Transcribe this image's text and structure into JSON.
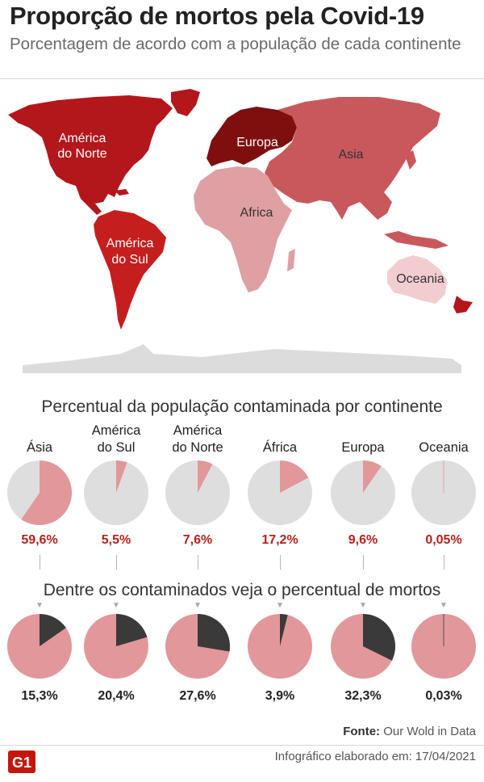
{
  "title": "Proporção de mortos pela Covid-19",
  "subtitle": "Porcentagem de acordo com a população de cada continente",
  "map": {
    "labels": {
      "north_america": [
        "América",
        "do Norte"
      ],
      "south_america": [
        "América",
        "do Sul"
      ],
      "europe": "Europa",
      "asia": "Asia",
      "africa": "Africa",
      "oceania": "Oceania"
    },
    "colors": {
      "north_america": "#b3171b",
      "south_america": "#c41e1e",
      "europe": "#7f0f0f",
      "asia": "#c9585d",
      "africa": "#dfa0a3",
      "oceania": "#f2cdd0",
      "antarctica": "#dcdcdc",
      "greenland": "#b3171b"
    }
  },
  "chart_data": [
    {
      "type": "pie",
      "title": "Percentual da população contaminada por continente",
      "categories": [
        "Ásia",
        "América do Sul",
        "América do Norte",
        "África",
        "Europa",
        "Oceania"
      ],
      "category_lines": [
        [
          "Ásia"
        ],
        [
          "América",
          "do Sul"
        ],
        [
          "América",
          "do Norte"
        ],
        [
          "África"
        ],
        [
          "Europa"
        ],
        [
          "Oceania"
        ]
      ],
      "values": [
        59.6,
        5.5,
        7.6,
        17.2,
        9.6,
        0.05
      ],
      "value_labels": [
        "59,6%",
        "5,5%",
        "7,6%",
        "17,2%",
        "9,6%",
        "0,05%"
      ],
      "slice_color": "#e2979b",
      "rest_color": "#dedede"
    },
    {
      "type": "pie",
      "title": "Dentre os contaminados veja o percentual de mortos",
      "categories": [
        "Ásia",
        "América do Sul",
        "América do Norte",
        "África",
        "Europa",
        "Oceania"
      ],
      "values": [
        15.3,
        20.4,
        27.6,
        3.9,
        32.3,
        0.03
      ],
      "value_labels": [
        "15,3%",
        "20,4%",
        "27,6%",
        "3,9%",
        "32,3%",
        "0,03%"
      ],
      "slice_color": "#3a3a3a",
      "rest_color": "#e2979b"
    }
  ],
  "source": {
    "label": "Fonte:",
    "text": "Our Wold in Data"
  },
  "footer": {
    "logo_text": "G1",
    "text": "Infográfico elaborado em: 17/04/2021"
  },
  "colors": {
    "accent": "#b7201d",
    "logo": "#c4170c"
  }
}
